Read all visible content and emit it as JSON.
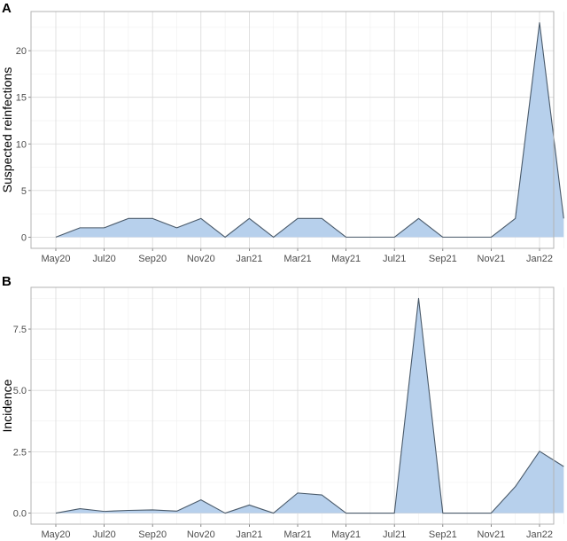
{
  "chart_data": [
    {
      "panel_label": "A",
      "type": "area",
      "xlabel": "",
      "ylabel": "Suspected reinfections",
      "x_ticks": [
        "May20",
        "Jul20",
        "Sep20",
        "Nov20",
        "Jan21",
        "Mar21",
        "May21",
        "Jul21",
        "Sep21",
        "Nov21",
        "Jan22"
      ],
      "y_ticks": [
        "0",
        "5",
        "10",
        "15",
        "20"
      ],
      "ylim": [
        -1.2,
        24.2
      ],
      "grid": true,
      "fill_color": "#b7d0ec",
      "line_color": "#4a5a6a",
      "series": [
        {
          "x": [
            "2020-05",
            "2020-06",
            "2020-07",
            "2020-08",
            "2020-09",
            "2020-10",
            "2020-11",
            "2020-12",
            "2021-01",
            "2021-02",
            "2021-03",
            "2021-04",
            "2021-05",
            "2021-06",
            "2021-07",
            "2021-08",
            "2021-09",
            "2021-10",
            "2021-11",
            "2021-12",
            "2022-01",
            "2022-02"
          ],
          "values": [
            0,
            1,
            1,
            2,
            2,
            1,
            2,
            0,
            2,
            0,
            2,
            2,
            0,
            0,
            0,
            2,
            0,
            0,
            0,
            2,
            23,
            2
          ]
        }
      ]
    },
    {
      "panel_label": "B",
      "type": "area",
      "xlabel": "",
      "ylabel": "Incidence",
      "x_ticks": [
        "May20",
        "Jul20",
        "Sep20",
        "Nov20",
        "Jan21",
        "Mar21",
        "May21",
        "Jul21",
        "Sep21",
        "Nov21",
        "Jan22"
      ],
      "y_ticks": [
        "0.0",
        "2.5",
        "5.0",
        "7.5"
      ],
      "ylim": [
        -0.45,
        9.2
      ],
      "grid": true,
      "fill_color": "#b7d0ec",
      "line_color": "#4a5a6a",
      "series": [
        {
          "x": [
            "2020-05",
            "2020-06",
            "2020-07",
            "2020-08",
            "2020-09",
            "2020-10",
            "2020-11",
            "2020-12",
            "2021-01",
            "2021-02",
            "2021-03",
            "2021-04",
            "2021-05",
            "2021-06",
            "2021-07",
            "2021-08",
            "2021-09",
            "2021-10",
            "2021-11",
            "2021-12",
            "2022-01",
            "2022-02"
          ],
          "values": [
            0,
            0.18,
            0.07,
            0.11,
            0.13,
            0.08,
            0.54,
            0,
            0.33,
            0,
            0.82,
            0.74,
            0,
            0,
            0,
            8.75,
            0,
            0,
            0,
            1.08,
            2.52,
            1.9
          ]
        }
      ]
    }
  ]
}
